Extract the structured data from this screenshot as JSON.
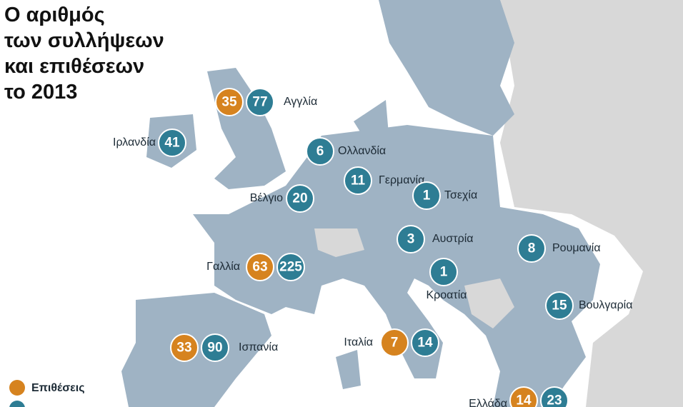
{
  "title": [
    "Ο αριθμός",
    "των συλλήψεων",
    "και επιθέσεων",
    "το 2013"
  ],
  "legend": {
    "attacks": "Επιθέσεις"
  },
  "countries": [
    {
      "name": "Αγγλία",
      "attacks": 35,
      "arrests": 77
    },
    {
      "name": "Ιρλανδία",
      "arrests": 41
    },
    {
      "name": "Ολλανδία",
      "arrests": 6
    },
    {
      "name": "Γερμανία",
      "arrests": 11
    },
    {
      "name": "Τσεχία",
      "arrests": 1
    },
    {
      "name": "Βέλγιο",
      "arrests": 20
    },
    {
      "name": "Αυστρία",
      "arrests": 3
    },
    {
      "name": "Ρουμανία",
      "arrests": 8
    },
    {
      "name": "Γαλλία",
      "attacks": 63,
      "arrests": 225
    },
    {
      "name": "Κροατία",
      "arrests": 1
    },
    {
      "name": "Βουλγαρία",
      "arrests": 15
    },
    {
      "name": "Ισπανία",
      "attacks": 33,
      "arrests": 90
    },
    {
      "name": "Ιταλία",
      "attacks": 7,
      "arrests": 14
    },
    {
      "name": "Ελλάδα",
      "attacks": 14,
      "arrests": 23
    }
  ]
}
